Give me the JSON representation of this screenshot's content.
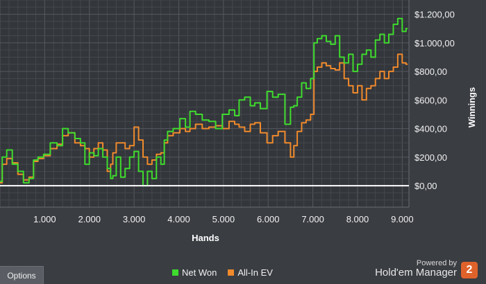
{
  "chart_data": {
    "type": "line",
    "xlabel": "Hands",
    "ylabel": "Winnings",
    "xlim": [
      0,
      9150
    ],
    "ylim": [
      -150,
      1300
    ],
    "x_ticks": [
      1000,
      2000,
      3000,
      4000,
      5000,
      6000,
      7000,
      8000,
      9000
    ],
    "x_tick_labels": [
      "1.000",
      "2.000",
      "3.000",
      "4.000",
      "5.000",
      "6.000",
      "7.000",
      "8.000",
      "9.000"
    ],
    "y_ticks": [
      0,
      200,
      400,
      600,
      800,
      1000,
      1200
    ],
    "y_tick_labels": [
      "$0,00",
      "$200,00",
      "$400,00",
      "$600,00",
      "$800,00",
      "$1.000,00",
      "$1.200,00"
    ],
    "grid": true,
    "legend_position": "bottom",
    "series": [
      {
        "name": "Net Won",
        "color": "#3fdc2e",
        "x": [
          0,
          100,
          200,
          350,
          450,
          600,
          700,
          800,
          900,
          1050,
          1200,
          1350,
          1450,
          1600,
          1750,
          1850,
          1950,
          2050,
          2150,
          2250,
          2350,
          2450,
          2500,
          2550,
          2650,
          2750,
          2850,
          2950,
          3050,
          3150,
          3250,
          3350,
          3450,
          3550,
          3650,
          3700,
          3800,
          3950,
          4100,
          4200,
          4300,
          4450,
          4600,
          4750,
          4900,
          5050,
          5200,
          5300,
          5400,
          5550,
          5650,
          5750,
          5900,
          6050,
          6150,
          6300,
          6450,
          6550,
          6600,
          6700,
          6800,
          6900,
          7000,
          7050,
          7150,
          7250,
          7350,
          7450,
          7550,
          7650,
          7750,
          7850,
          7950,
          8050,
          8150,
          8250,
          8350,
          8450,
          8550,
          8650,
          8750,
          8850,
          8950,
          9050,
          9120
        ],
        "y": [
          30,
          200,
          250,
          150,
          100,
          20,
          50,
          180,
          200,
          220,
          300,
          280,
          400,
          370,
          330,
          300,
          150,
          230,
          210,
          260,
          200,
          120,
          50,
          70,
          200,
          60,
          120,
          200,
          240,
          100,
          0,
          100,
          50,
          200,
          150,
          320,
          380,
          400,
          470,
          410,
          520,
          500,
          460,
          450,
          400,
          500,
          530,
          490,
          600,
          620,
          560,
          580,
          540,
          660,
          620,
          640,
          430,
          550,
          560,
          620,
          720,
          680,
          750,
          1000,
          1030,
          1050,
          1010,
          990,
          1050,
          900,
          860,
          920,
          800,
          850,
          920,
          950,
          900,
          1020,
          1060,
          1000,
          1060,
          1130,
          1170,
          1080,
          1100
        ]
      },
      {
        "name": "All-In EV",
        "color": "#f08a2c",
        "x": [
          0,
          100,
          200,
          350,
          450,
          600,
          700,
          800,
          900,
          1050,
          1200,
          1350,
          1450,
          1600,
          1750,
          1850,
          1950,
          2050,
          2150,
          2250,
          2350,
          2450,
          2500,
          2550,
          2650,
          2750,
          2850,
          2950,
          3050,
          3150,
          3250,
          3350,
          3450,
          3550,
          3650,
          3700,
          3800,
          3950,
          4100,
          4200,
          4300,
          4450,
          4600,
          4750,
          4900,
          5050,
          5200,
          5300,
          5400,
          5550,
          5650,
          5750,
          5900,
          6050,
          6150,
          6300,
          6450,
          6550,
          6600,
          6700,
          6800,
          6900,
          7000,
          7050,
          7150,
          7250,
          7350,
          7450,
          7550,
          7650,
          7750,
          7850,
          7950,
          8050,
          8150,
          8250,
          8350,
          8450,
          8550,
          8650,
          8750,
          8850,
          8950,
          9050,
          9120
        ],
        "y": [
          20,
          150,
          190,
          160,
          80,
          40,
          60,
          170,
          190,
          210,
          260,
          290,
          350,
          370,
          300,
          280,
          260,
          200,
          260,
          300,
          250,
          100,
          150,
          230,
          300,
          300,
          260,
          280,
          410,
          320,
          200,
          150,
          180,
          220,
          230,
          300,
          350,
          370,
          400,
          380,
          400,
          430,
          400,
          410,
          420,
          400,
          450,
          430,
          410,
          380,
          430,
          440,
          370,
          300,
          350,
          380,
          300,
          200,
          280,
          380,
          440,
          460,
          500,
          800,
          830,
          860,
          840,
          820,
          810,
          860,
          750,
          700,
          650,
          700,
          600,
          680,
          700,
          750,
          800,
          750,
          800,
          830,
          920,
          860,
          850
        ]
      }
    ]
  },
  "ui": {
    "options_label": "Options",
    "powered_by": "Powered by",
    "brand_name": "Hold'em Manager",
    "brand_badge": "2"
  }
}
